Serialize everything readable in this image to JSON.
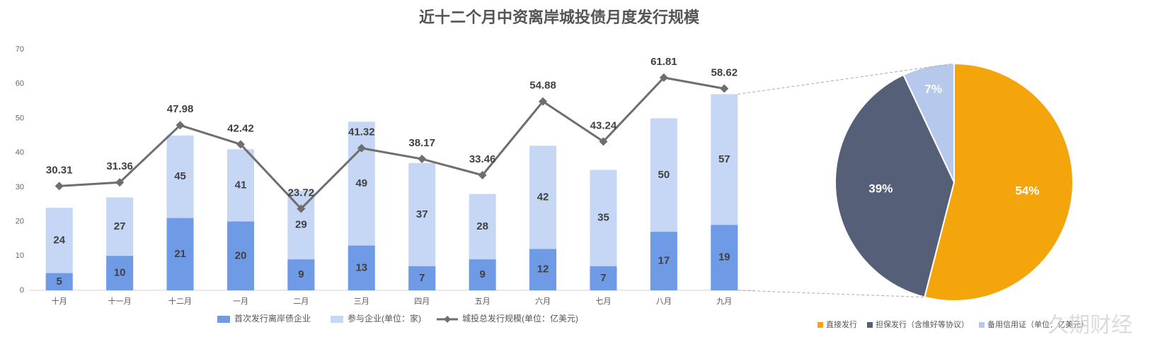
{
  "chart_data": [
    {
      "type": "bar",
      "title": "近十二个月中资离岸城投债月度发行规模",
      "categories": [
        "十月",
        "十一月",
        "十二月",
        "一月",
        "二月",
        "三月",
        "四月",
        "五月",
        "六月",
        "七月",
        "八月",
        "九月"
      ],
      "series": [
        {
          "name": "首次发行离岸债企业",
          "type": "bar",
          "color": "#6f9be6",
          "values": [
            5,
            10,
            21,
            20,
            9,
            13,
            7,
            9,
            12,
            7,
            17,
            19
          ]
        },
        {
          "name": "参与企业(单位：家)",
          "type": "bar",
          "color": "#c6d6f5",
          "values": [
            24,
            27,
            45,
            41,
            29,
            49,
            37,
            28,
            42,
            35,
            50,
            57
          ]
        },
        {
          "name": "城投总发行规模(单位：亿美元)",
          "type": "line",
          "color": "#6e6e6e",
          "values": [
            30.31,
            31.36,
            47.98,
            42.42,
            23.72,
            41.32,
            38.17,
            33.46,
            54.88,
            43.24,
            61.81,
            58.62
          ]
        }
      ],
      "ylim": [
        0,
        70
      ],
      "yticks": [
        0,
        10,
        20,
        30,
        40,
        50,
        60,
        70
      ],
      "grid": false,
      "legend": "bottom"
    },
    {
      "type": "pie",
      "categories": [
        "直接发行",
        "担保发行（含维好等协议）",
        "备用信用证（单位：亿美元）"
      ],
      "values": [
        54,
        39,
        7
      ],
      "value_labels": [
        "54%",
        "39%",
        "7%"
      ],
      "colors": [
        "#f5a50c",
        "#565f78",
        "#b6c9ec"
      ],
      "legend": "bottom"
    }
  ],
  "watermark": "久期财经"
}
